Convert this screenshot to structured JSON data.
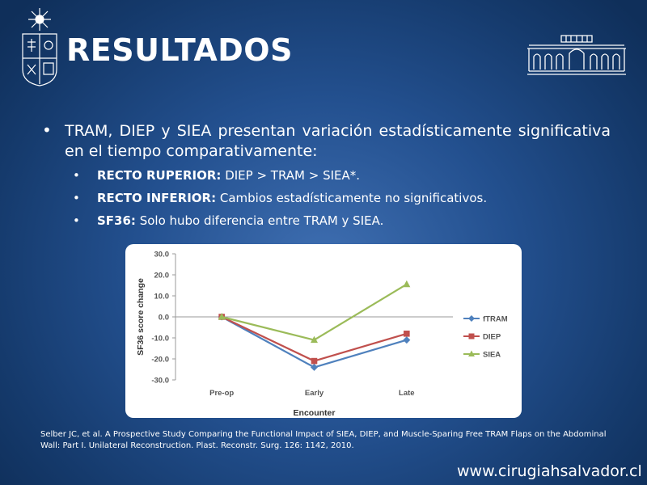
{
  "slide": {
    "title": "RESULTADOS",
    "main_bullet": "TRAM, DIEP y SIEA presentan variación estadísticamente significativa en el tiempo comparativamente:",
    "sub_bullets": [
      {
        "label": "RECTO RUPERIOR:",
        "text": " DIEP > TRAM > SIEA*."
      },
      {
        "label": "RECTO INFERIOR:",
        "text": " Cambios estadísticamente no significativos."
      },
      {
        "label": "SF36:",
        "text": " Solo hubo diferencia entre TRAM y SIEA."
      }
    ],
    "citation": "Selber JC, et al. A Prospective Study Comparing the Functional Impact of SIEA, DIEP, and Muscle-Sparing Free TRAM Flaps on the Abdominal Wall: Part I. Unilateral Reconstruction. Plast. Reconstr. Surg. 126: 1142, 2010.",
    "footer_url": "www.cirugiahsalvador.cl",
    "colors": {
      "background": "#23508f",
      "text": "#ffffff"
    }
  },
  "chart_data": {
    "type": "line",
    "categories": [
      "Pre-op",
      "Early",
      "Late"
    ],
    "series": [
      {
        "name": "fTRAM",
        "values": [
          0,
          -24,
          -11
        ],
        "color": "#4f81bd",
        "marker": "diamond"
      },
      {
        "name": "DIEP",
        "values": [
          0,
          -21,
          -8
        ],
        "color": "#c0504d",
        "marker": "square"
      },
      {
        "name": "SIEA",
        "values": [
          0,
          -11,
          15.5
        ],
        "color": "#9bbb59",
        "marker": "triangle"
      }
    ],
    "xlabel": "Encounter",
    "ylabel": "SF36 score change",
    "ylim": [
      -30,
      30
    ],
    "yticks": [
      "30.0",
      "20.0",
      "10.0",
      "0.0",
      "-10.0",
      "-20.0",
      "-30.0"
    ],
    "grid": false,
    "legend": "right"
  }
}
